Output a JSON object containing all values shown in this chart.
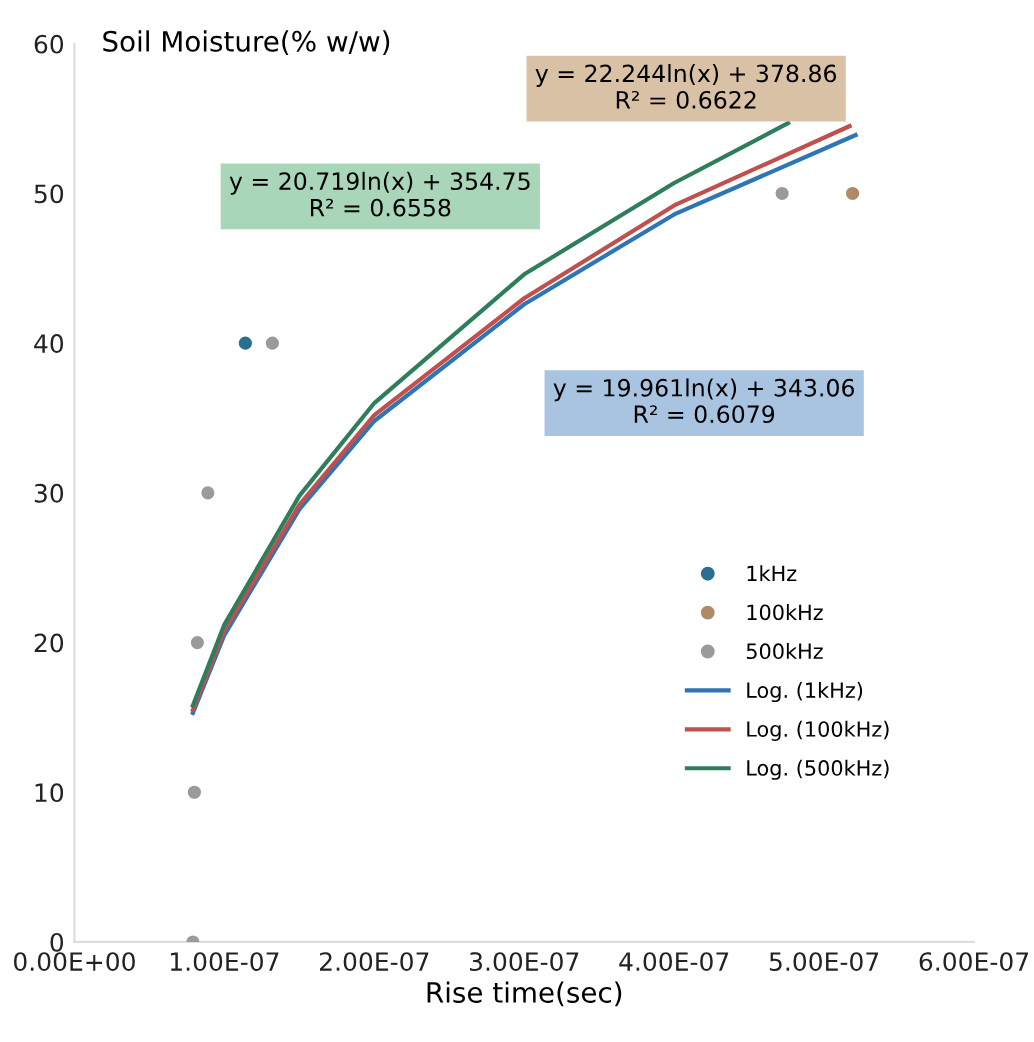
{
  "chart_data": {
    "type": "scatter",
    "ylabel": "Soil Moisture(% w/w)",
    "xlabel": "Rise time(sec)",
    "xlim": [
      0,
      6e-07
    ],
    "xticks": [
      {
        "value": 0,
        "label": "0.00E+00"
      },
      {
        "value": 1e-07,
        "label": "1.00E-07"
      },
      {
        "value": 2e-07,
        "label": "2.00E-07"
      },
      {
        "value": 3e-07,
        "label": "3.00E-07"
      },
      {
        "value": 4e-07,
        "label": "4.00E-07"
      },
      {
        "value": 5e-07,
        "label": "5.00E-07"
      },
      {
        "value": 6e-07,
        "label": "6.00E-07"
      }
    ],
    "ylim": [
      0,
      60
    ],
    "yticks": [
      0,
      10,
      20,
      30,
      40,
      50,
      60
    ],
    "grid": false,
    "legend": "right",
    "series": [
      {
        "name": "1kHz",
        "marker": "circle",
        "color": "#2a6f8f",
        "x": [
          1.14e-07
        ],
        "values": [
          40
        ]
      },
      {
        "name": "100kHz",
        "marker": "circle",
        "color": "#b08a68",
        "x": [
          5.19e-07
        ],
        "values": [
          50
        ]
      },
      {
        "name": "500kHz",
        "marker": "circle",
        "color": "#9a9a9a",
        "x": [
          7.9e-08,
          8e-08,
          8.2e-08,
          8.9e-08,
          1.32e-07,
          4.72e-07
        ],
        "values": [
          0,
          10,
          20,
          30,
          40,
          50
        ]
      },
      {
        "name": "Log. (1kHz)",
        "type": "line",
        "marker": "none",
        "color": "#2e75b6",
        "x": [
          7.9e-08,
          1e-07,
          1.5e-07,
          2e-07,
          3e-07,
          4e-07,
          5.21e-07
        ],
        "values": [
          15.3,
          20.5,
          28.9,
          34.8,
          42.6,
          48.6,
          53.9
        ]
      },
      {
        "name": "Log. (100kHz)",
        "type": "line",
        "marker": "none",
        "color": "#c0504d",
        "x": [
          7.9e-08,
          1e-07,
          1.5e-07,
          2e-07,
          3e-07,
          4e-07,
          5.17e-07
        ],
        "values": [
          15.5,
          20.8,
          29.2,
          35.2,
          43.0,
          49.2,
          54.5
        ]
      },
      {
        "name": "Log. (500kHz)",
        "type": "line",
        "marker": "none",
        "color": "#2e7d5b",
        "x": [
          7.9e-08,
          1e-07,
          1.5e-07,
          2e-07,
          3e-07,
          4e-07,
          4.76e-07
        ],
        "values": [
          15.8,
          21.2,
          29.8,
          36.0,
          44.6,
          50.7,
          54.7
        ]
      }
    ],
    "annotations": [
      "y = 22.244ln(x) + 378.86\nR² = 0.6622",
      "y = 20.719ln(x) + 354.75\nR² = 0.6558",
      "y = 19.961ln(x) + 343.06\nR² = 0.6079"
    ]
  }
}
